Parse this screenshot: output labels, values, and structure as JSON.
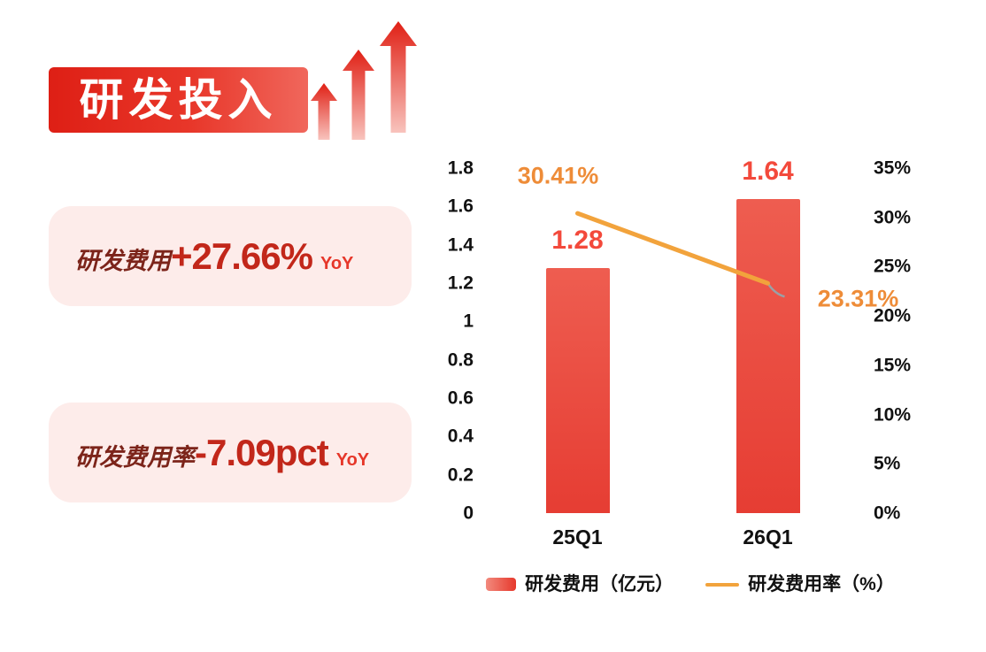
{
  "header": {
    "title": "研发投入"
  },
  "highlights": [
    {
      "prefix": "研发费用",
      "value": "+27.66%",
      "suffix": "YoY"
    },
    {
      "prefix": "研发费用率",
      "value": "-7.09pct",
      "suffix": "YoY"
    }
  ],
  "colors": {
    "banner_start": "#de1f15",
    "banner_end": "#f0675c",
    "highlight_bg": "#fdecea",
    "bar": "#e9463b",
    "bar_label": "#f3493b",
    "line": "#f2a33c",
    "line_label": "#ee8c38",
    "axis_text": "#111111"
  },
  "chart_data": {
    "type": "bar",
    "title": "",
    "categories": [
      "25Q1",
      "26Q1"
    ],
    "series": [
      {
        "name": "研发费用（亿元）",
        "type": "bar",
        "axis": "left",
        "values": [
          1.28,
          1.64
        ],
        "labels": [
          "1.28",
          "1.64"
        ],
        "color": "#e9463b"
      },
      {
        "name": "研发费用率（%）",
        "type": "line",
        "axis": "right",
        "values": [
          30.41,
          23.31
        ],
        "labels": [
          "30.41%",
          "23.31%"
        ],
        "color": "#f2a33c"
      }
    ],
    "left_axis": {
      "min": 0,
      "max": 1.8,
      "ticks": [
        "1.8",
        "1.6",
        "1.4",
        "1.2",
        "1",
        "0.8",
        "0.6",
        "0.4",
        "0.2",
        "0"
      ]
    },
    "right_axis": {
      "min": 0,
      "max": 35,
      "ticks": [
        "35%",
        "30%",
        "25%",
        "20%",
        "15%",
        "10%",
        "5%",
        "0%"
      ]
    },
    "grid": false,
    "legend_position": "bottom"
  }
}
